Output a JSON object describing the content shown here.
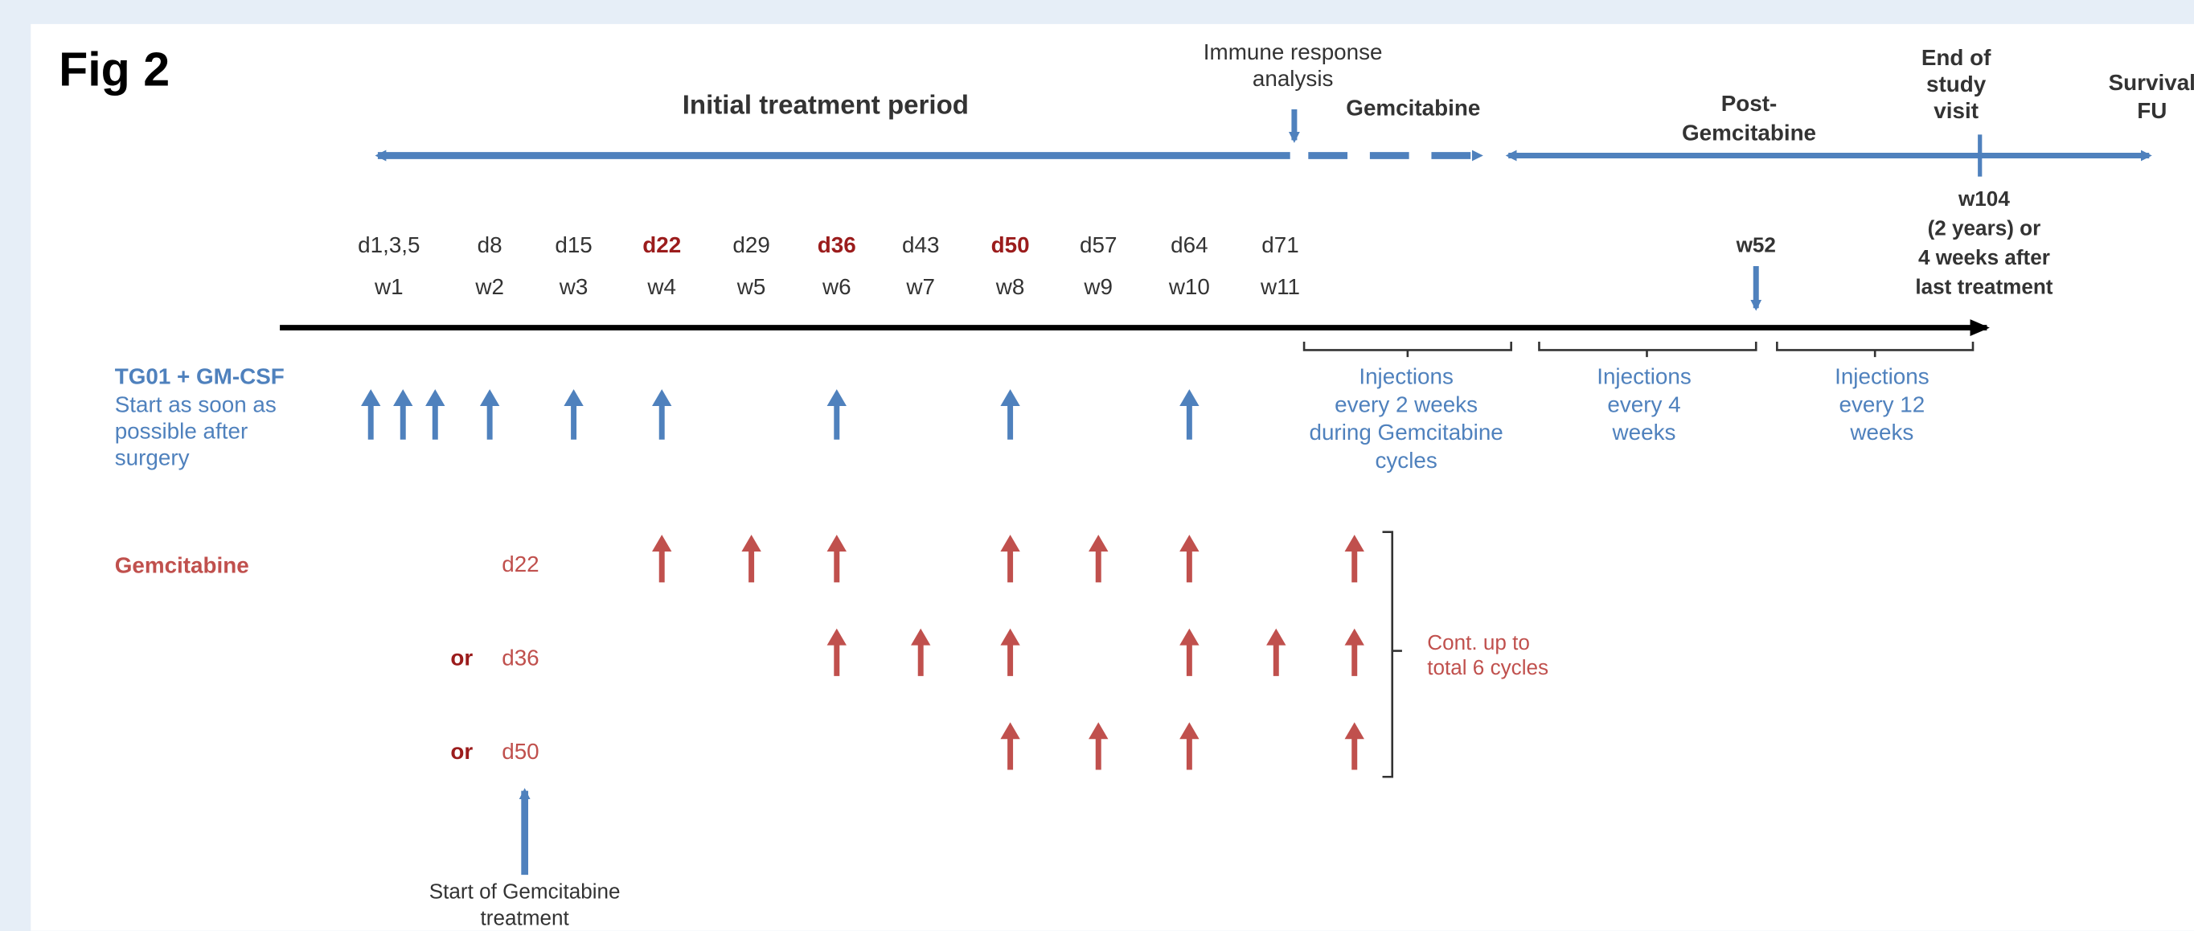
{
  "figure_label": "Fig 2",
  "header": {
    "initial_period": "Initial treatment period",
    "immune_response": [
      "Immune response",
      "analysis"
    ],
    "gemcitabine": "Gemcitabine",
    "post_gemcitabine": [
      "Post-",
      "Gemcitabine"
    ],
    "end_of_study": [
      "End of",
      "study",
      "visit"
    ],
    "survival": [
      "Survival",
      "FU"
    ]
  },
  "w104": [
    "w104",
    "(2 years) or",
    "4 weeks after",
    "last treatment"
  ],
  "w52": "w52",
  "timeline": {
    "days": [
      "d1,3,5",
      "d8",
      "d15",
      "d22",
      "d29",
      "d36",
      "d43",
      "d50",
      "d57",
      "d64",
      "d71"
    ],
    "weeks": [
      "w1",
      "w2",
      "w3",
      "w4",
      "w5",
      "w6",
      "w7",
      "w8",
      "w9",
      "w10",
      "w11"
    ]
  },
  "tg01": {
    "title": "TG01 + GM-CSF",
    "lines": [
      "Start as soon as",
      "possible after",
      "surgery"
    ]
  },
  "injections": [
    [
      "Injections",
      "every 2 weeks",
      "during Gemcitabine",
      "cycles"
    ],
    [
      "Injections",
      "every 4",
      "weeks"
    ],
    [
      "Injections",
      "every 12",
      "weeks"
    ]
  ],
  "gemcitabine": {
    "label": "Gemcitabine",
    "rows": [
      {
        "day": "d22"
      },
      {
        "prefix": "or",
        "day": "d36"
      },
      {
        "prefix": "or",
        "day": "d50"
      }
    ]
  },
  "continuation": [
    "Cont. up to",
    "total 6 cycles"
  ],
  "start_note": [
    "Start of Gemcitabine",
    "treatment"
  ]
}
